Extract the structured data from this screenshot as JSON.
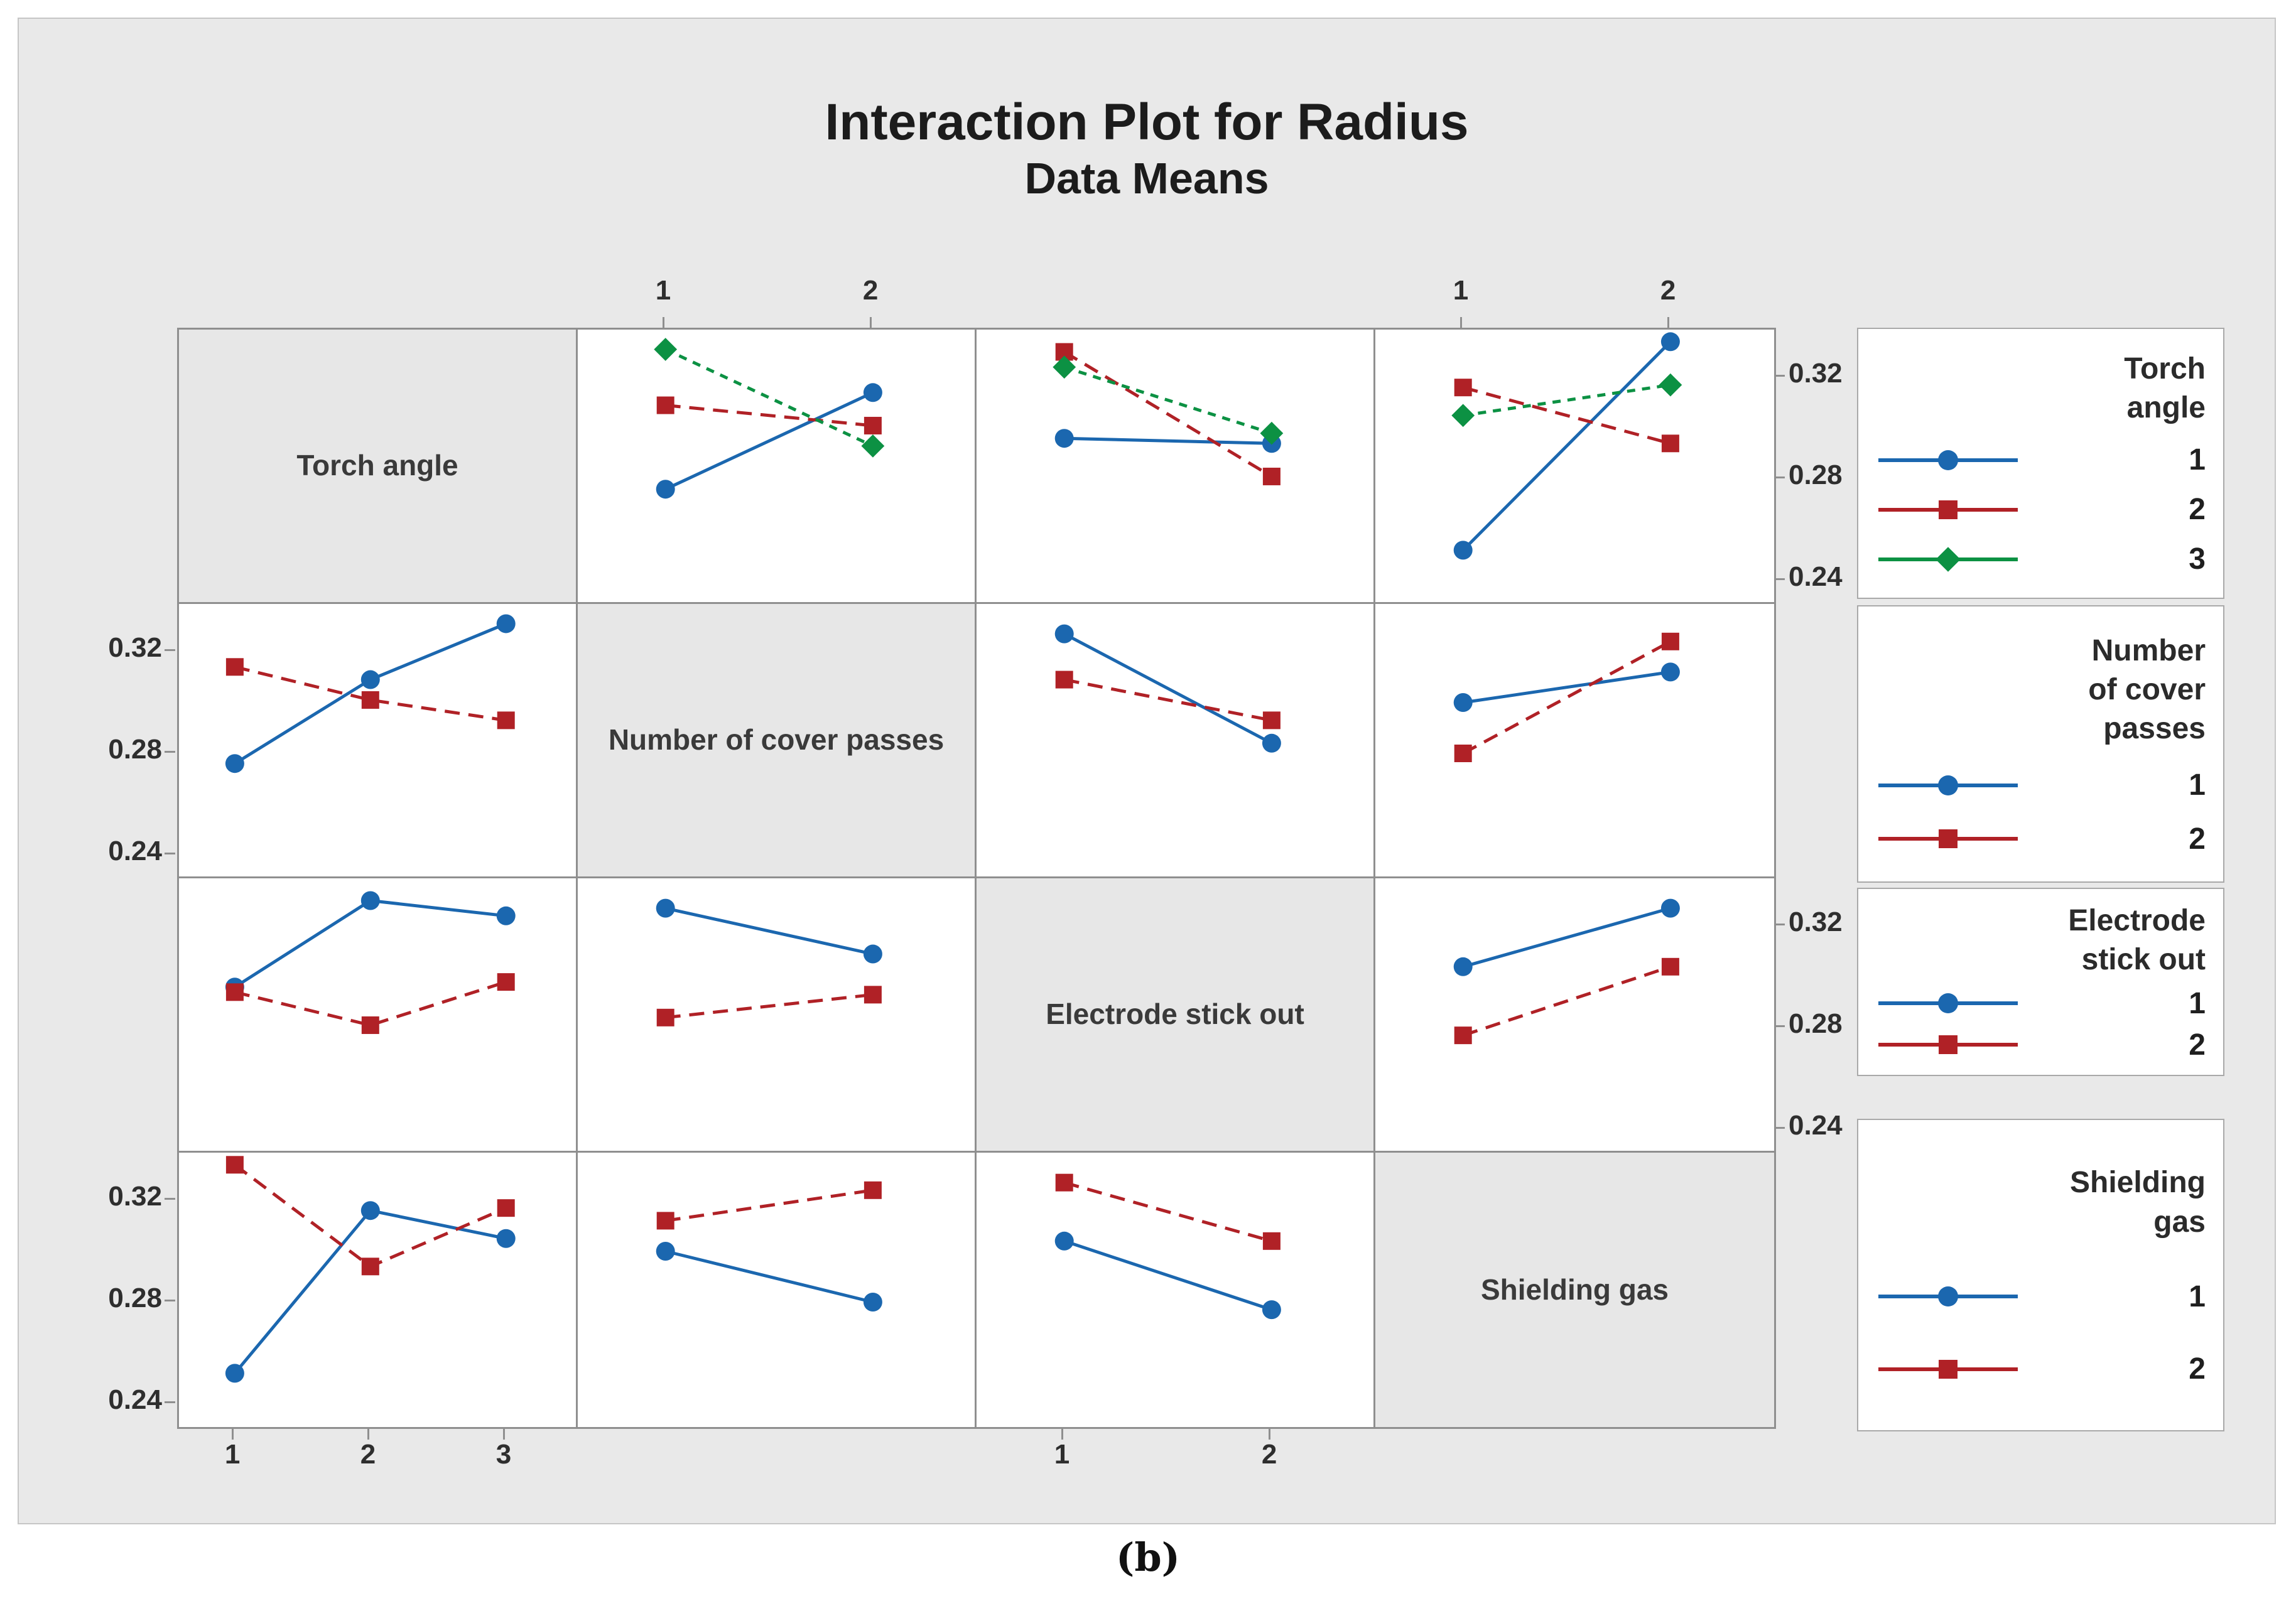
{
  "title": "Interaction Plot for Radius",
  "subtitle": "Data Means",
  "caption": "(b)",
  "colors": {
    "level1_blue": "#1b67af",
    "level2_red": "#b02126",
    "level3_green": "#0c9143",
    "panel_border": "#8f8f8f",
    "figure_bg": "#e9e9e9",
    "diagonal_bg": "#e7e7e7"
  },
  "factors": [
    {
      "name": "Torch angle",
      "levels": [
        "1",
        "2",
        "3"
      ]
    },
    {
      "name": "Number of cover passes",
      "levels": [
        "1",
        "2"
      ]
    },
    {
      "name": "Electrode stick out",
      "levels": [
        "1",
        "2"
      ]
    },
    {
      "name": "Shielding gas",
      "levels": [
        "1",
        "2"
      ]
    }
  ],
  "legends": [
    {
      "title": "Torch\nangle",
      "items": [
        {
          "label": "1",
          "style": 0
        },
        {
          "label": "2",
          "style": 1
        },
        {
          "label": "3",
          "style": 2
        }
      ]
    },
    {
      "title": "Number\nof cover\npasses",
      "items": [
        {
          "label": "1",
          "style": 0
        },
        {
          "label": "2",
          "style": 1
        }
      ]
    },
    {
      "title": "Electrode\nstick out",
      "items": [
        {
          "label": "1",
          "style": 0
        },
        {
          "label": "2",
          "style": 1
        }
      ]
    },
    {
      "title": "Shielding\ngas",
      "items": [
        {
          "label": "1",
          "style": 0
        },
        {
          "label": "2",
          "style": 1
        }
      ]
    }
  ],
  "chart_data": {
    "type": "line",
    "subtype": "interaction-plot-matrix",
    "response": "Radius",
    "grid": "4x4 matrix, diagonal holds factor names, panel(i,j) plots means vs factor j with one line per level of factor i",
    "ylim": [
      0.23,
      0.339
    ],
    "yticks": [
      0.32,
      0.28,
      0.24
    ],
    "ytick_labels": [
      "0.32",
      "0.28",
      "0.24"
    ],
    "x_positions": {
      "2": [
        0.22,
        0.74
      ],
      "3": [
        0.14,
        0.48,
        0.82
      ]
    },
    "series_styles": [
      {
        "level": "1",
        "color": "#1b67af",
        "marker": "circle",
        "line": "solid"
      },
      {
        "level": "2",
        "color": "#b02126",
        "marker": "square",
        "line": "dashed"
      },
      {
        "level": "3",
        "color": "#0c9143",
        "marker": "diamond",
        "line": "dotted"
      }
    ],
    "row_axes": [
      {
        "row": 0,
        "side": "right",
        "labels": [
          "0.32",
          "0.28",
          "0.24"
        ]
      },
      {
        "row": 1,
        "side": "left",
        "labels": [
          "0.32",
          "0.28",
          "0.24"
        ]
      },
      {
        "row": 2,
        "side": "right",
        "labels": [
          "0.32",
          "0.28",
          "0.24"
        ]
      },
      {
        "row": 3,
        "side": "left",
        "labels": [
          "0.32",
          "0.28",
          "0.24"
        ]
      }
    ],
    "column_axes": [
      {
        "col": 0,
        "side": "bottom",
        "labels": [
          "1",
          "2",
          "3"
        ]
      },
      {
        "col": 1,
        "side": "top",
        "labels": [
          "1",
          "2"
        ]
      },
      {
        "col": 2,
        "side": "bottom",
        "labels": [
          "1",
          "2"
        ]
      },
      {
        "col": 3,
        "side": "top",
        "labels": [
          "1",
          "2"
        ]
      }
    ],
    "panels": [
      {
        "row": 0,
        "col": 1,
        "lines_factor": "Torch angle",
        "x_factor": "Number of cover passes",
        "series": [
          {
            "level": "1",
            "values": [
              0.276,
              0.314
            ]
          },
          {
            "level": "2",
            "values": [
              0.309,
              0.301
            ]
          },
          {
            "level": "3",
            "values": [
              0.331,
              0.293
            ]
          }
        ]
      },
      {
        "row": 0,
        "col": 2,
        "lines_factor": "Torch angle",
        "x_factor": "Electrode stick out",
        "series": [
          {
            "level": "1",
            "values": [
              0.296,
              0.294
            ]
          },
          {
            "level": "2",
            "values": [
              0.33,
              0.281
            ]
          },
          {
            "level": "3",
            "values": [
              0.324,
              0.298
            ]
          }
        ]
      },
      {
        "row": 0,
        "col": 3,
        "lines_factor": "Torch angle",
        "x_factor": "Shielding gas",
        "series": [
          {
            "level": "1",
            "values": [
              0.252,
              0.334
            ]
          },
          {
            "level": "2",
            "values": [
              0.316,
              0.294
            ]
          },
          {
            "level": "3",
            "values": [
              0.305,
              0.317
            ]
          }
        ]
      },
      {
        "row": 1,
        "col": 0,
        "lines_factor": "Number of cover passes",
        "x_factor": "Torch angle",
        "series": [
          {
            "level": "1",
            "values": [
              0.276,
              0.309,
              0.331
            ]
          },
          {
            "level": "2",
            "values": [
              0.314,
              0.301,
              0.293
            ]
          }
        ]
      },
      {
        "row": 1,
        "col": 2,
        "lines_factor": "Number of cover passes",
        "x_factor": "Electrode stick out",
        "series": [
          {
            "level": "1",
            "values": [
              0.327,
              0.284
            ]
          },
          {
            "level": "2",
            "values": [
              0.309,
              0.293
            ]
          }
        ]
      },
      {
        "row": 1,
        "col": 3,
        "lines_factor": "Number of cover passes",
        "x_factor": "Shielding gas",
        "series": [
          {
            "level": "1",
            "values": [
              0.3,
              0.312
            ]
          },
          {
            "level": "2",
            "values": [
              0.28,
              0.324
            ]
          }
        ]
      },
      {
        "row": 2,
        "col": 0,
        "lines_factor": "Electrode stick out",
        "x_factor": "Torch angle",
        "series": [
          {
            "level": "1",
            "values": [
              0.296,
              0.33,
              0.324
            ]
          },
          {
            "level": "2",
            "values": [
              0.294,
              0.281,
              0.298
            ]
          }
        ]
      },
      {
        "row": 2,
        "col": 1,
        "lines_factor": "Electrode stick out",
        "x_factor": "Number of cover passes",
        "series": [
          {
            "level": "1",
            "values": [
              0.327,
              0.309
            ]
          },
          {
            "level": "2",
            "values": [
              0.284,
              0.293
            ]
          }
        ]
      },
      {
        "row": 2,
        "col": 3,
        "lines_factor": "Electrode stick out",
        "x_factor": "Shielding gas",
        "series": [
          {
            "level": "1",
            "values": [
              0.304,
              0.327
            ]
          },
          {
            "level": "2",
            "values": [
              0.277,
              0.304
            ]
          }
        ]
      },
      {
        "row": 3,
        "col": 0,
        "lines_factor": "Shielding gas",
        "x_factor": "Torch angle",
        "series": [
          {
            "level": "1",
            "values": [
              0.252,
              0.316,
              0.305
            ]
          },
          {
            "level": "2",
            "values": [
              0.334,
              0.294,
              0.317
            ]
          }
        ]
      },
      {
        "row": 3,
        "col": 1,
        "lines_factor": "Shielding gas",
        "x_factor": "Number of cover passes",
        "series": [
          {
            "level": "1",
            "values": [
              0.3,
              0.28
            ]
          },
          {
            "level": "2",
            "values": [
              0.312,
              0.324
            ]
          }
        ]
      },
      {
        "row": 3,
        "col": 2,
        "lines_factor": "Shielding gas",
        "x_factor": "Electrode stick out",
        "series": [
          {
            "level": "1",
            "values": [
              0.304,
              0.277
            ]
          },
          {
            "level": "2",
            "values": [
              0.327,
              0.304
            ]
          }
        ]
      }
    ]
  }
}
